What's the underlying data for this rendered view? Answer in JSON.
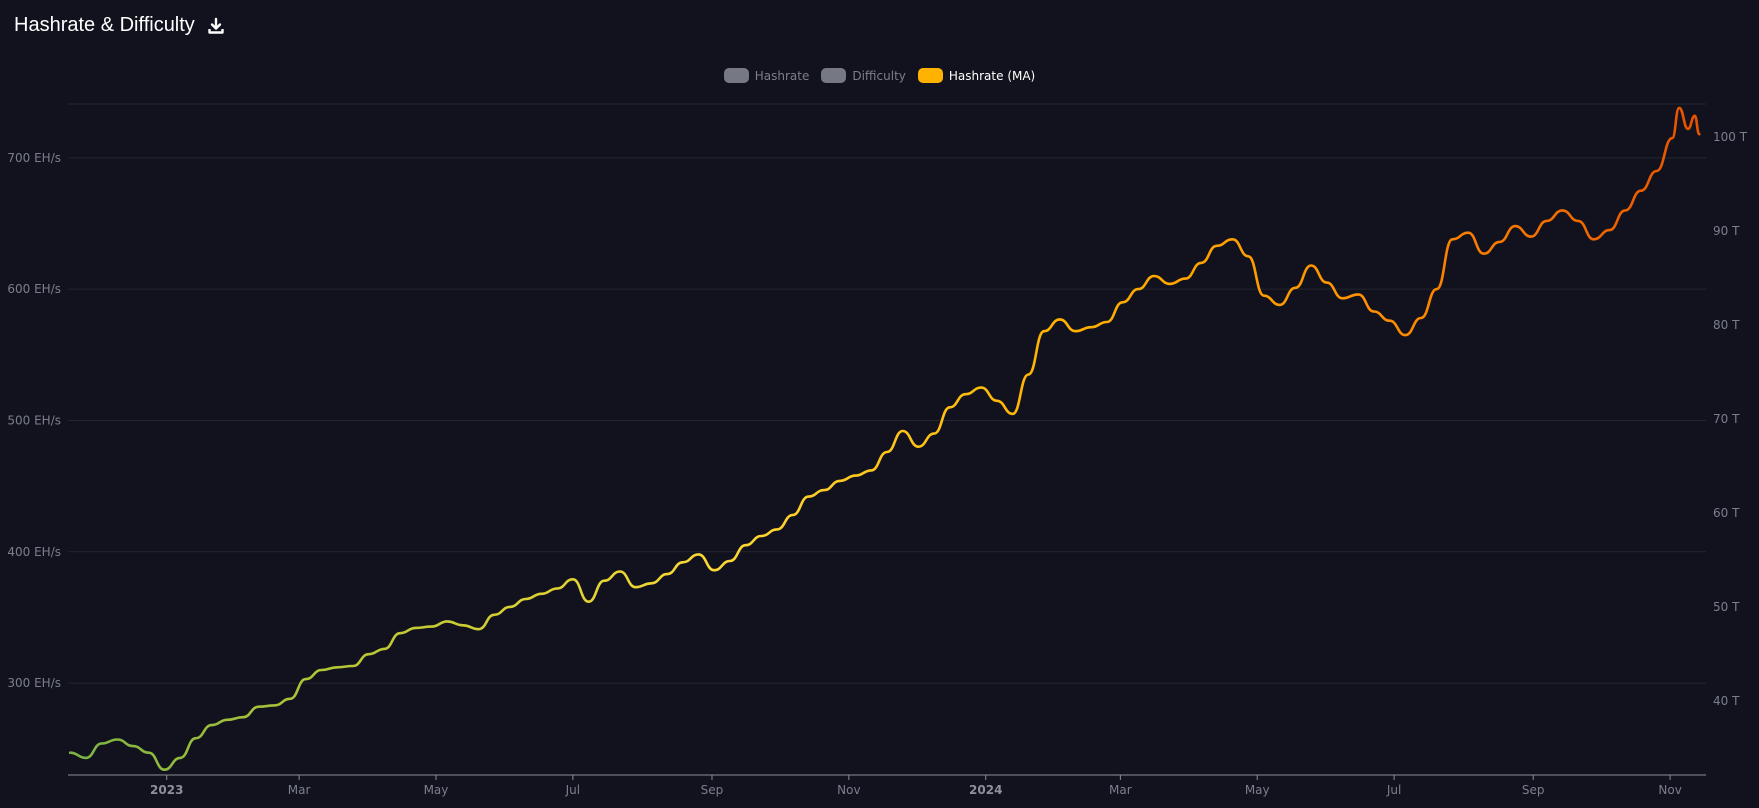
{
  "header": {
    "title": "Hashrate & Difficulty",
    "download_icon": "download-icon"
  },
  "legend": [
    {
      "label": "Hashrate",
      "state": "off",
      "color": "#767983"
    },
    {
      "label": "Difficulty",
      "state": "off",
      "color": "#767983"
    },
    {
      "label": "Hashrate (MA)",
      "state": "on",
      "color": "#ffb300"
    }
  ],
  "chart_data": {
    "type": "line",
    "series": [
      {
        "name": "Hashrate (MA)",
        "x": [
          "2022-11-19",
          "2022-11-26",
          "2022-12-03",
          "2022-12-10",
          "2022-12-17",
          "2022-12-24",
          "2022-12-31",
          "2023-01-07",
          "2023-01-14",
          "2023-01-21",
          "2023-01-28",
          "2023-02-04",
          "2023-02-11",
          "2023-02-18",
          "2023-02-25",
          "2023-03-04",
          "2023-03-11",
          "2023-03-18",
          "2023-03-25",
          "2023-04-01",
          "2023-04-08",
          "2023-04-15",
          "2023-04-22",
          "2023-04-29",
          "2023-05-06",
          "2023-05-13",
          "2023-05-20",
          "2023-05-27",
          "2023-06-03",
          "2023-06-10",
          "2023-06-17",
          "2023-06-24",
          "2023-07-01",
          "2023-07-08",
          "2023-07-15",
          "2023-07-22",
          "2023-07-29",
          "2023-08-05",
          "2023-08-12",
          "2023-08-19",
          "2023-08-26",
          "2023-09-02",
          "2023-09-09",
          "2023-09-16",
          "2023-09-23",
          "2023-09-30",
          "2023-10-07",
          "2023-10-14",
          "2023-10-21",
          "2023-10-28",
          "2023-11-04",
          "2023-11-11",
          "2023-11-18",
          "2023-11-25",
          "2023-12-02",
          "2023-12-09",
          "2023-12-16",
          "2023-12-23",
          "2023-12-30",
          "2024-01-06",
          "2024-01-13",
          "2024-01-20",
          "2024-01-27",
          "2024-02-03",
          "2024-02-10",
          "2024-02-17",
          "2024-02-24",
          "2024-03-02",
          "2024-03-09",
          "2024-03-16",
          "2024-03-23",
          "2024-03-30",
          "2024-04-06",
          "2024-04-13",
          "2024-04-20",
          "2024-04-27",
          "2024-05-04",
          "2024-05-11",
          "2024-05-18",
          "2024-05-25",
          "2024-06-01",
          "2024-06-08",
          "2024-06-15",
          "2024-06-22",
          "2024-06-29",
          "2024-07-06",
          "2024-07-13",
          "2024-07-20",
          "2024-07-27",
          "2024-08-03",
          "2024-08-10",
          "2024-08-17",
          "2024-08-24",
          "2024-08-31",
          "2024-09-07",
          "2024-09-14",
          "2024-09-21",
          "2024-09-28",
          "2024-10-05",
          "2024-10-12",
          "2024-10-19",
          "2024-10-26",
          "2024-11-02",
          "2024-11-05",
          "2024-11-09",
          "2024-11-12",
          "2024-11-14"
        ],
        "y": [
          247,
          243,
          254,
          257,
          252,
          247,
          234,
          243,
          258,
          268,
          272,
          274,
          282,
          283,
          288,
          303,
          310,
          312,
          313,
          322,
          326,
          338,
          342,
          343,
          347,
          344,
          341,
          352,
          358,
          364,
          368,
          372,
          379,
          362,
          378,
          385,
          373,
          376,
          383,
          392,
          398,
          386,
          393,
          405,
          412,
          417,
          428,
          442,
          447,
          454,
          458,
          462,
          476,
          492,
          480,
          490,
          510,
          520,
          525,
          515,
          505,
          535,
          568,
          577,
          568,
          571,
          575,
          590,
          600,
          610,
          604,
          608,
          620,
          633,
          638,
          625,
          595,
          588,
          601,
          618,
          605,
          593,
          596,
          583,
          576,
          565,
          578,
          600,
          638,
          643,
          627,
          636,
          648,
          640,
          652,
          660,
          652,
          638,
          645,
          660,
          675,
          690,
          715,
          738,
          722,
          732,
          718
        ]
      }
    ],
    "y_left": {
      "ticks": [
        "300 EH/s",
        "400 EH/s",
        "500 EH/s",
        "600 EH/s",
        "700 EH/s"
      ],
      "range": [
        230,
        741
      ]
    },
    "y_right": {
      "ticks": [
        "40 T",
        "50 T",
        "60 T",
        "70 T",
        "80 T",
        "90 T",
        "100 T"
      ]
    },
    "x_axis": {
      "range": [
        "2022-11-18",
        "2024-11-17"
      ],
      "ticks": [
        {
          "label": "2023",
          "date": "2023-01-01",
          "bold": true
        },
        {
          "label": "Mar",
          "date": "2023-03-01"
        },
        {
          "label": "May",
          "date": "2023-05-01"
        },
        {
          "label": "Jul",
          "date": "2023-07-01"
        },
        {
          "label": "Sep",
          "date": "2023-09-01"
        },
        {
          "label": "Nov",
          "date": "2023-11-01"
        },
        {
          "label": "2024",
          "date": "2024-01-01",
          "bold": true
        },
        {
          "label": "Mar",
          "date": "2024-03-01"
        },
        {
          "label": "May",
          "date": "2024-05-01"
        },
        {
          "label": "Jul",
          "date": "2024-07-01"
        },
        {
          "label": "Sep",
          "date": "2024-09-01"
        },
        {
          "label": "Nov",
          "date": "2024-11-01"
        }
      ]
    },
    "gradient": [
      "#7cb342",
      "#c0ca33",
      "#fdd835",
      "#ffb300",
      "#ff8f00",
      "#e65100"
    ],
    "grid": true,
    "legend_position": "top-center"
  }
}
